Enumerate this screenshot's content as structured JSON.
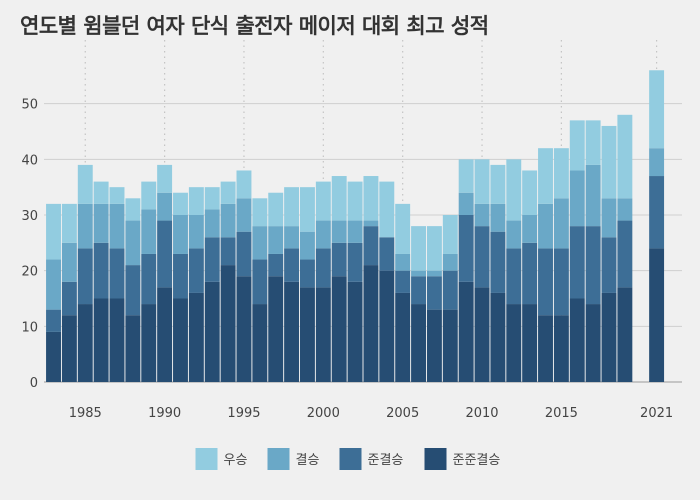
{
  "chart_data": {
    "type": "bar",
    "stacked": true,
    "title": "연도별 윔블던 여자 단식 출전자 메이저 대회 최고 성적",
    "xlabel": "",
    "ylabel": "",
    "ylim": [
      0,
      60
    ],
    "y_ticks": [
      0,
      10,
      20,
      30,
      40,
      50
    ],
    "x_ticks": [
      1985,
      1990,
      1995,
      2000,
      2005,
      2010,
      2015,
      2021
    ],
    "grid": true,
    "legend_position": "bottom",
    "x": [
      1983,
      1984,
      1985,
      1986,
      1987,
      1988,
      1989,
      1990,
      1991,
      1992,
      1993,
      1994,
      1995,
      1996,
      1997,
      1998,
      1999,
      2000,
      2001,
      2002,
      2003,
      2004,
      2005,
      2006,
      2007,
      2008,
      2009,
      2010,
      2011,
      2012,
      2013,
      2014,
      2015,
      2016,
      2017,
      2018,
      2019,
      2021
    ],
    "series": [
      {
        "name": "준준결승",
        "color": "#264d73",
        "values": [
          9,
          12,
          14,
          15,
          15,
          12,
          14,
          17,
          15,
          16,
          18,
          21,
          19,
          14,
          19,
          18,
          17,
          17,
          19,
          18,
          21,
          20,
          16,
          14,
          13,
          13,
          18,
          17,
          16,
          14,
          14,
          12,
          12,
          15,
          14,
          16,
          17,
          24
        ]
      },
      {
        "name": "준결승",
        "color": "#3d6e96",
        "values": [
          4,
          6,
          10,
          10,
          9,
          9,
          9,
          12,
          8,
          8,
          8,
          5,
          8,
          8,
          4,
          6,
          5,
          7,
          6,
          7,
          7,
          6,
          4,
          5,
          6,
          7,
          12,
          11,
          11,
          10,
          11,
          12,
          12,
          13,
          14,
          10,
          12,
          13
        ]
      },
      {
        "name": "결승",
        "color": "#6aa8c7",
        "values": [
          9,
          7,
          8,
          7,
          8,
          8,
          8,
          5,
          7,
          6,
          5,
          6,
          6,
          6,
          5,
          4,
          5,
          5,
          4,
          4,
          1,
          0,
          3,
          1,
          1,
          3,
          4,
          4,
          5,
          5,
          5,
          8,
          9,
          10,
          11,
          7,
          4,
          5
        ]
      },
      {
        "name": "우승",
        "color": "#92cce0",
        "values": [
          10,
          7,
          7,
          4,
          3,
          4,
          5,
          5,
          4,
          5,
          4,
          4,
          5,
          5,
          6,
          7,
          8,
          7,
          8,
          7,
          8,
          10,
          9,
          8,
          8,
          7,
          6,
          8,
          7,
          11,
          8,
          10,
          9,
          9,
          8,
          13,
          15,
          14
        ]
      }
    ]
  }
}
